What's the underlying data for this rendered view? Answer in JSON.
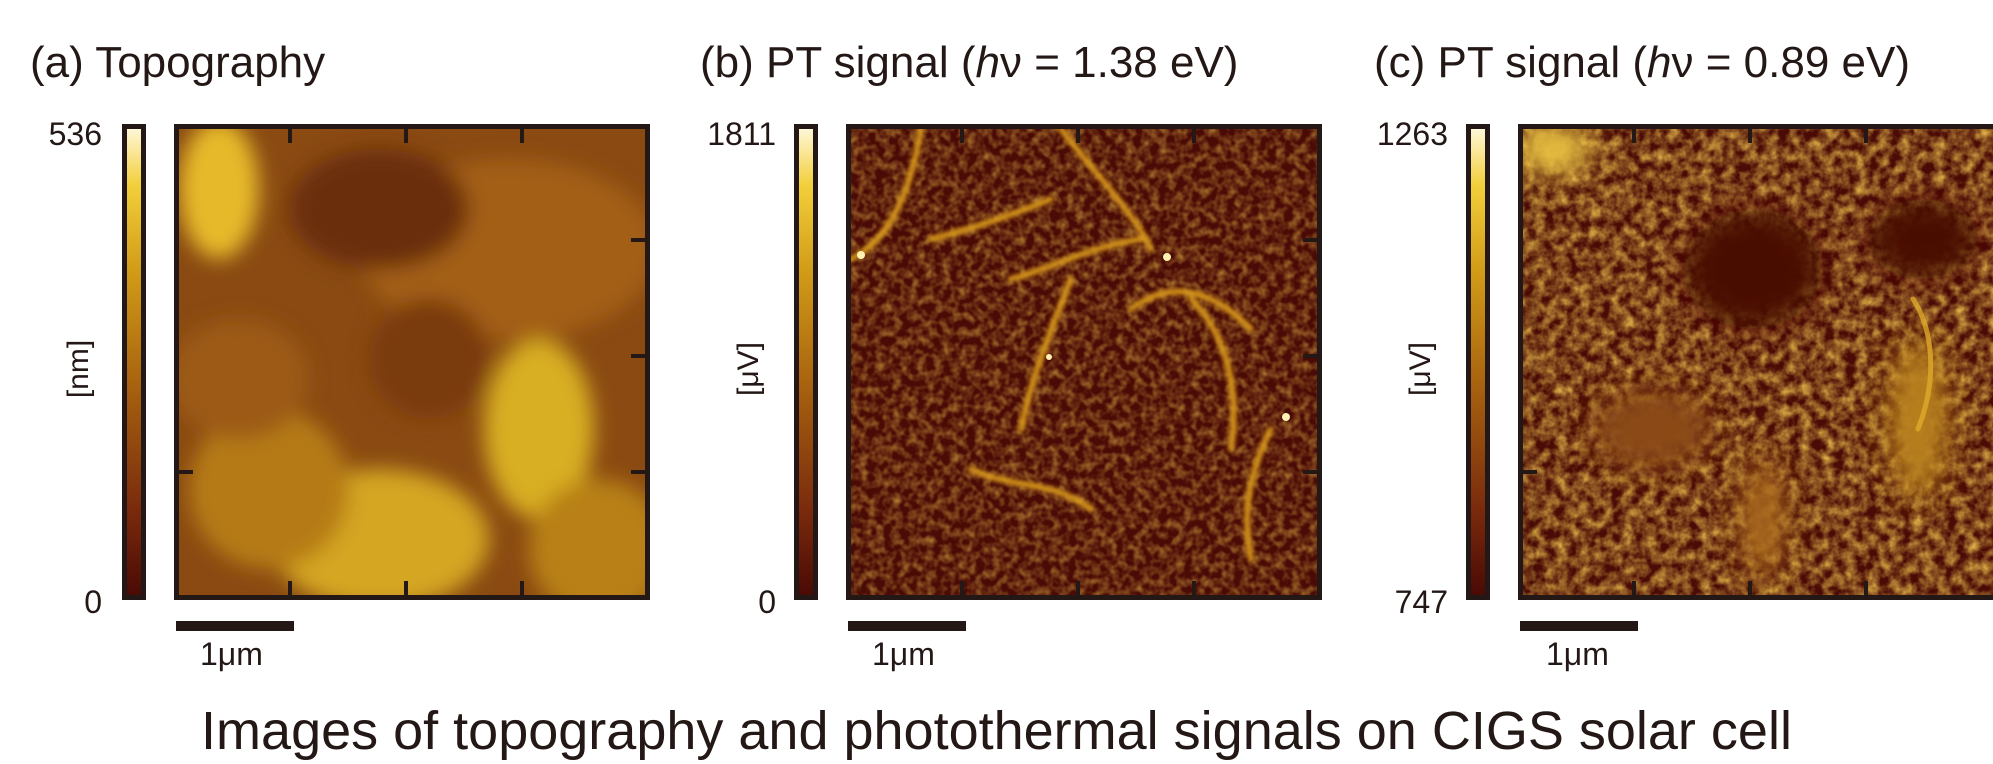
{
  "panels": [
    {
      "title_prefix": "(a) Topography",
      "title_italic": "",
      "title_suffix": "",
      "cbar_max": "536",
      "cbar_min": "0",
      "cbar_unit": "[nm]",
      "scale_label": "1μm"
    },
    {
      "title_prefix": "(b) PT signal (",
      "title_italic": "h",
      "title_suffix": "ν = 1.38 eV)",
      "cbar_max": "1811",
      "cbar_min": "0",
      "cbar_unit": "[μV]",
      "scale_label": "1μm"
    },
    {
      "title_prefix": "(c) PT signal (",
      "title_italic": "h",
      "title_suffix": "ν = 0.89 eV)",
      "cbar_max": "1263",
      "cbar_min": "747",
      "cbar_unit": "[μV]",
      "scale_label": "1μm"
    }
  ],
  "caption": "Images of topography and photothermal signals on CIGS solar cell",
  "colors": {
    "dark": "#4a0a05",
    "mid": "#a8620f",
    "bright": "#f2cf3c",
    "highlight": "#fff7d6",
    "frame": "#231815"
  }
}
